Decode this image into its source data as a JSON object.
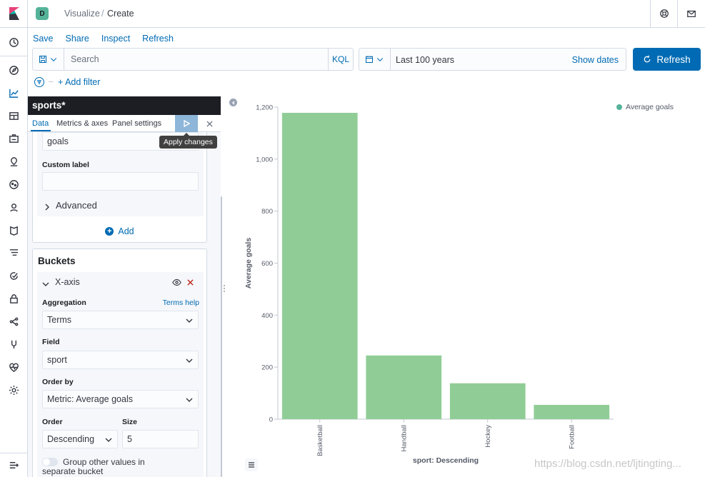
{
  "header": {
    "space_initial": "D",
    "breadcrumb_parent": "Visualize",
    "breadcrumb_separator": "/",
    "breadcrumb_current": "Create"
  },
  "top_menu": {
    "save": "Save",
    "share": "Share",
    "inspect": "Inspect",
    "refresh": "Refresh"
  },
  "query_bar": {
    "placeholder": "Search",
    "language": "KQL",
    "date_range": "Last 100 years",
    "show_dates": "Show dates",
    "refresh_button": "Refresh"
  },
  "filter_bar": {
    "add_filter": "+ Add filter"
  },
  "editor": {
    "index_pattern": "sports*",
    "tabs": [
      "Data",
      "Metrics & axes",
      "Panel settings"
    ],
    "tooltip": "Apply changes",
    "metric": {
      "field_value": "goals",
      "custom_label": "Custom label",
      "custom_label_value": "",
      "advanced": "Advanced",
      "add": "Add"
    },
    "buckets": {
      "title": "Buckets",
      "xaxis_title": "X-axis",
      "aggregation_label": "Aggregation",
      "aggregation_help": "Terms help",
      "aggregation_value": "Terms",
      "field_label": "Field",
      "field_value": "sport",
      "order_by_label": "Order by",
      "order_by_value": "Metric: Average goals",
      "order_label": "Order",
      "order_value": "Descending",
      "size_label": "Size",
      "size_value": "5",
      "group_other": "Group other values in separate bucket"
    }
  },
  "colors": {
    "accent": "#006bb4",
    "bar": "#90cd96",
    "legend_dot": "#54b399"
  },
  "chart_data": {
    "type": "bar",
    "categories": [
      "Basketball",
      "Handball",
      "Hockey",
      "Football"
    ],
    "values": [
      1178,
      245,
      138,
      55
    ],
    "ylabel": "Average goals",
    "xlabel": "sport: Descending",
    "ylim": [
      0,
      1200
    ],
    "yticks": [
      0,
      200,
      400,
      600,
      800,
      "1,000",
      "1,200"
    ],
    "ytick_values": [
      0,
      200,
      400,
      600,
      800,
      1000,
      1200
    ],
    "legend": [
      "Average goals"
    ],
    "legend_position": "top-right"
  },
  "watermark": "https://blog.csdn.net/ljtingting..."
}
